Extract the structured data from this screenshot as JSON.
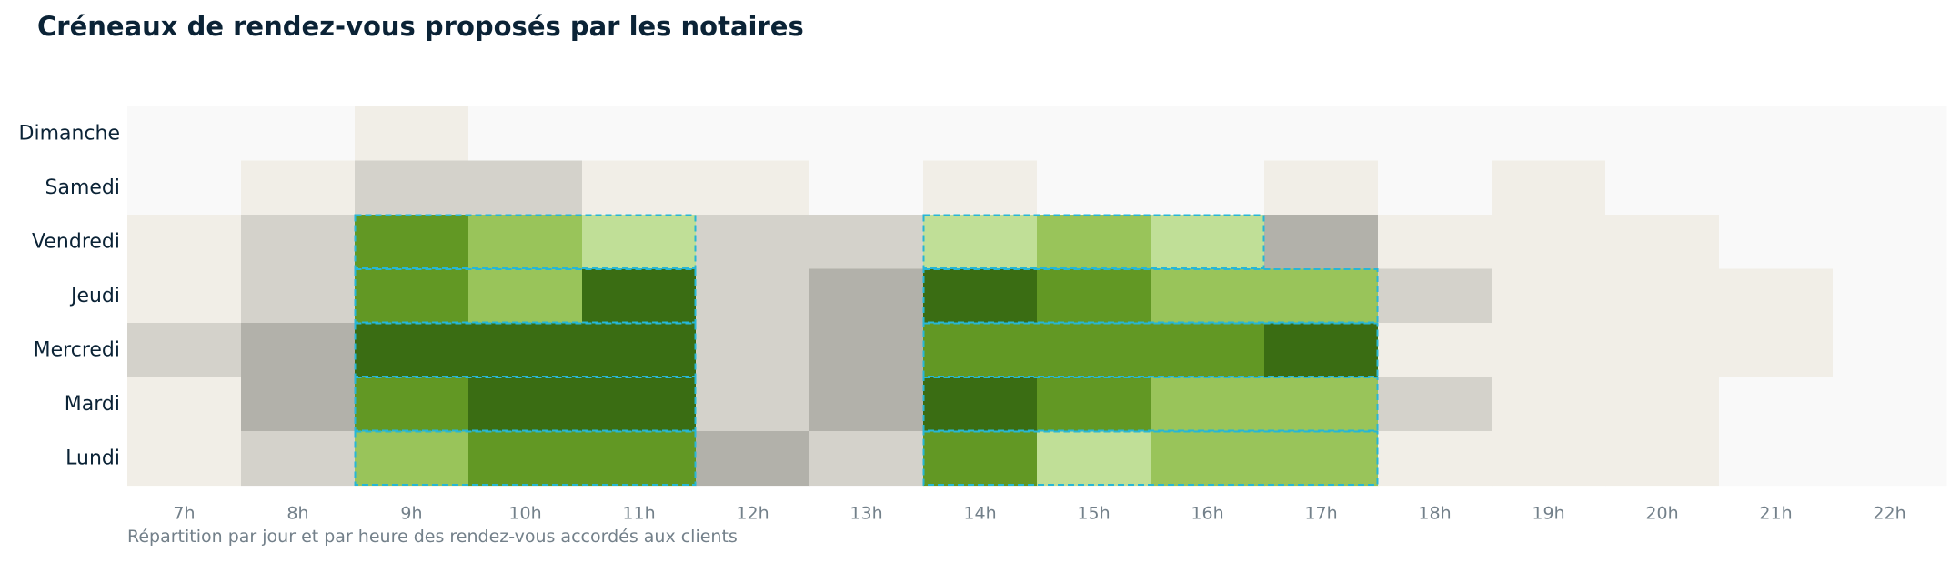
{
  "title": "Créneaux de rendez-vous proposés par les notaires",
  "caption": "Répartition par jour et par heure des rendez-vous accordés aux clients",
  "chart_data": {
    "type": "heatmap",
    "title": "Créneaux de rendez-vous proposés par les notaires",
    "subtitle": "Répartition par jour et par heure des rendez-vous accordés aux clients",
    "x": [
      "7h",
      "8h",
      "9h",
      "10h",
      "11h",
      "12h",
      "13h",
      "14h",
      "15h",
      "16h",
      "17h",
      "18h",
      "19h",
      "20h",
      "21h",
      "22h"
    ],
    "y": [
      "Dimanche",
      "Samedi",
      "Vendredi",
      "Jeudi",
      "Mercredi",
      "Mardi",
      "Lundi"
    ],
    "grid": false,
    "values": [
      [
        0,
        0,
        1,
        0,
        0,
        0,
        0,
        0,
        0,
        0,
        0,
        0,
        0,
        0,
        0,
        0
      ],
      [
        0,
        1,
        2,
        2,
        1,
        1,
        0,
        1,
        0,
        0,
        1,
        0,
        1,
        0,
        0,
        0
      ],
      [
        1,
        2,
        7,
        6,
        5,
        2,
        2,
        5,
        6,
        5,
        3,
        1,
        1,
        1,
        0,
        0
      ],
      [
        1,
        2,
        7,
        6,
        8,
        2,
        3,
        8,
        7,
        6,
        6,
        2,
        1,
        1,
        1,
        0
      ],
      [
        2,
        3,
        8,
        8,
        8,
        2,
        3,
        7,
        7,
        7,
        8,
        1,
        1,
        1,
        1,
        0
      ],
      [
        1,
        3,
        7,
        8,
        8,
        2,
        3,
        8,
        7,
        6,
        6,
        2,
        1,
        1,
        0,
        0
      ],
      [
        1,
        2,
        6,
        7,
        7,
        3,
        2,
        7,
        5,
        6,
        6,
        1,
        1,
        1,
        0,
        0
      ]
    ],
    "level_colors": [
      "#f9f9f9",
      "#f1eee7",
      "#d4d2cb",
      "#b2b1aa",
      "#c8dca6",
      "#c0df97",
      "#99c45a",
      "#629824",
      "#3a6d13"
    ],
    "highlighted_slots": [
      {
        "day": "Vendredi",
        "from": "9h",
        "to": "11h"
      },
      {
        "day": "Vendredi",
        "from": "14h",
        "to": "16h"
      },
      {
        "day": "Jeudi",
        "from": "9h",
        "to": "11h"
      },
      {
        "day": "Jeudi",
        "from": "14h",
        "to": "17h"
      },
      {
        "day": "Mercredi",
        "from": "9h",
        "to": "11h"
      },
      {
        "day": "Mercredi",
        "from": "14h",
        "to": "17h"
      },
      {
        "day": "Mardi",
        "from": "9h",
        "to": "11h"
      },
      {
        "day": "Mardi",
        "from": "14h",
        "to": "17h"
      },
      {
        "day": "Lundi",
        "from": "9h",
        "to": "11h"
      },
      {
        "day": "Lundi",
        "from": "14h",
        "to": "17h"
      }
    ],
    "highlight_color": "#27b6d6"
  }
}
